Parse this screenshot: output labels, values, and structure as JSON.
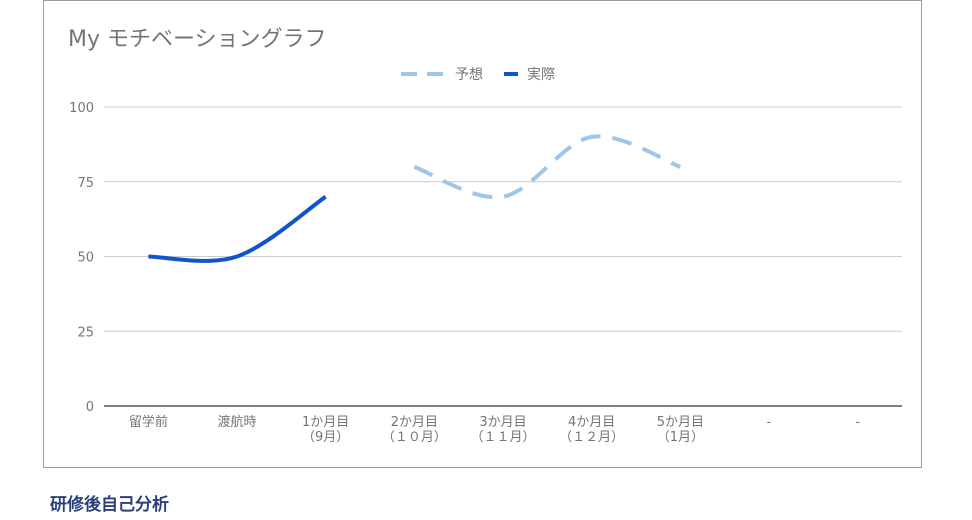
{
  "chart_data": {
    "type": "line",
    "title": "My モチベーショングラフ",
    "categories": [
      [
        "留学前"
      ],
      [
        "渡航時"
      ],
      [
        "1か月目",
        "（9月）"
      ],
      [
        "2か月目",
        "（１０月）"
      ],
      [
        "3か月目",
        "（１１月）"
      ],
      [
        "4か月目",
        "（１２月）"
      ],
      [
        "5か月目",
        "（1月）"
      ],
      [
        "-"
      ],
      [
        "-"
      ]
    ],
    "series": [
      {
        "name": "予想",
        "color": "#9fc5e8",
        "style": "dashed",
        "values": [
          null,
          null,
          null,
          80,
          70,
          90,
          80,
          null,
          null
        ]
      },
      {
        "name": "実際",
        "color": "#1155cc",
        "style": "solid",
        "values": [
          50,
          50,
          70,
          null,
          null,
          null,
          null,
          null,
          null
        ]
      }
    ],
    "yticks": [
      "0",
      "25",
      "50",
      "75",
      "100"
    ],
    "ylim": [
      0,
      100
    ],
    "grid": true,
    "legend": "top"
  },
  "footer": {
    "heading": "研修後自己分析"
  }
}
